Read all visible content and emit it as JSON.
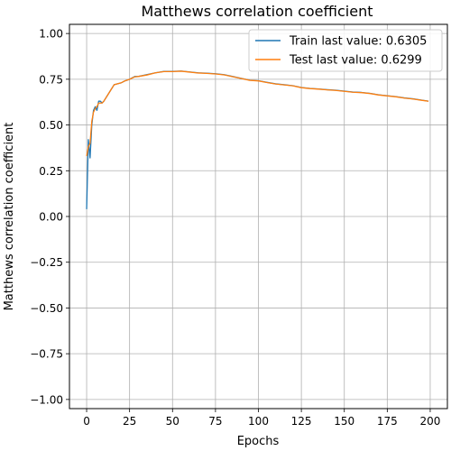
{
  "chart_data": {
    "type": "line",
    "title": "Matthews correlation coefficient",
    "xlabel": "Epochs",
    "ylabel": "Matthews correlation coefficient",
    "xlim": [
      -10,
      210
    ],
    "ylim": [
      -1.05,
      1.05
    ],
    "xticks": [
      0,
      25,
      50,
      75,
      100,
      125,
      150,
      175,
      200
    ],
    "xtick_labels": [
      "0",
      "25",
      "50",
      "75",
      "100",
      "125",
      "150",
      "175",
      "200"
    ],
    "yticks": [
      -1.0,
      -0.75,
      -0.5,
      -0.25,
      0.0,
      0.25,
      0.5,
      0.75,
      1.0
    ],
    "ytick_labels": [
      "−1.00",
      "−0.75",
      "−0.50",
      "−0.25",
      "0.00",
      "0.25",
      "0.50",
      "0.75",
      "1.00"
    ],
    "grid": true,
    "legend_position": "top-right",
    "series": [
      {
        "name": "Train last value: 0.6305",
        "color": "#1f77b4",
        "x": [
          0,
          1,
          2,
          3,
          4,
          5,
          6,
          7,
          8,
          9,
          10,
          12,
          14,
          16,
          18,
          20,
          22,
          25,
          28,
          30,
          35,
          40,
          45,
          50,
          55,
          60,
          65,
          70,
          75,
          80,
          85,
          90,
          95,
          100,
          105,
          110,
          115,
          120,
          125,
          130,
          135,
          140,
          145,
          150,
          155,
          160,
          165,
          170,
          175,
          180,
          185,
          190,
          195,
          199
        ],
        "y": [
          0.04,
          0.42,
          0.32,
          0.5,
          0.58,
          0.6,
          0.58,
          0.63,
          0.63,
          0.62,
          0.63,
          0.66,
          0.69,
          0.72,
          0.725,
          0.73,
          0.74,
          0.75,
          0.765,
          0.765,
          0.775,
          0.785,
          0.793,
          0.793,
          0.795,
          0.79,
          0.785,
          0.783,
          0.78,
          0.775,
          0.765,
          0.755,
          0.745,
          0.742,
          0.733,
          0.725,
          0.72,
          0.715,
          0.705,
          0.7,
          0.697,
          0.693,
          0.69,
          0.685,
          0.68,
          0.678,
          0.673,
          0.665,
          0.66,
          0.655,
          0.648,
          0.643,
          0.636,
          0.6305
        ]
      },
      {
        "name": "Test last value: 0.6299",
        "color": "#ff7f0e",
        "x": [
          0,
          1,
          2,
          3,
          4,
          5,
          6,
          7,
          8,
          9,
          10,
          12,
          14,
          16,
          18,
          20,
          22,
          25,
          28,
          30,
          35,
          40,
          45,
          50,
          55,
          60,
          65,
          70,
          75,
          80,
          85,
          90,
          95,
          100,
          105,
          110,
          115,
          120,
          125,
          130,
          135,
          140,
          145,
          150,
          155,
          160,
          165,
          170,
          175,
          180,
          185,
          190,
          195,
          199
        ],
        "y": [
          0.33,
          0.38,
          0.4,
          0.52,
          0.57,
          0.59,
          0.6,
          0.62,
          0.62,
          0.62,
          0.63,
          0.66,
          0.69,
          0.72,
          0.725,
          0.73,
          0.74,
          0.75,
          0.763,
          0.765,
          0.773,
          0.785,
          0.792,
          0.792,
          0.794,
          0.789,
          0.784,
          0.782,
          0.779,
          0.774,
          0.764,
          0.754,
          0.744,
          0.741,
          0.732,
          0.724,
          0.719,
          0.714,
          0.704,
          0.699,
          0.696,
          0.692,
          0.689,
          0.684,
          0.679,
          0.677,
          0.672,
          0.664,
          0.659,
          0.654,
          0.647,
          0.642,
          0.635,
          0.6299
        ]
      }
    ]
  }
}
